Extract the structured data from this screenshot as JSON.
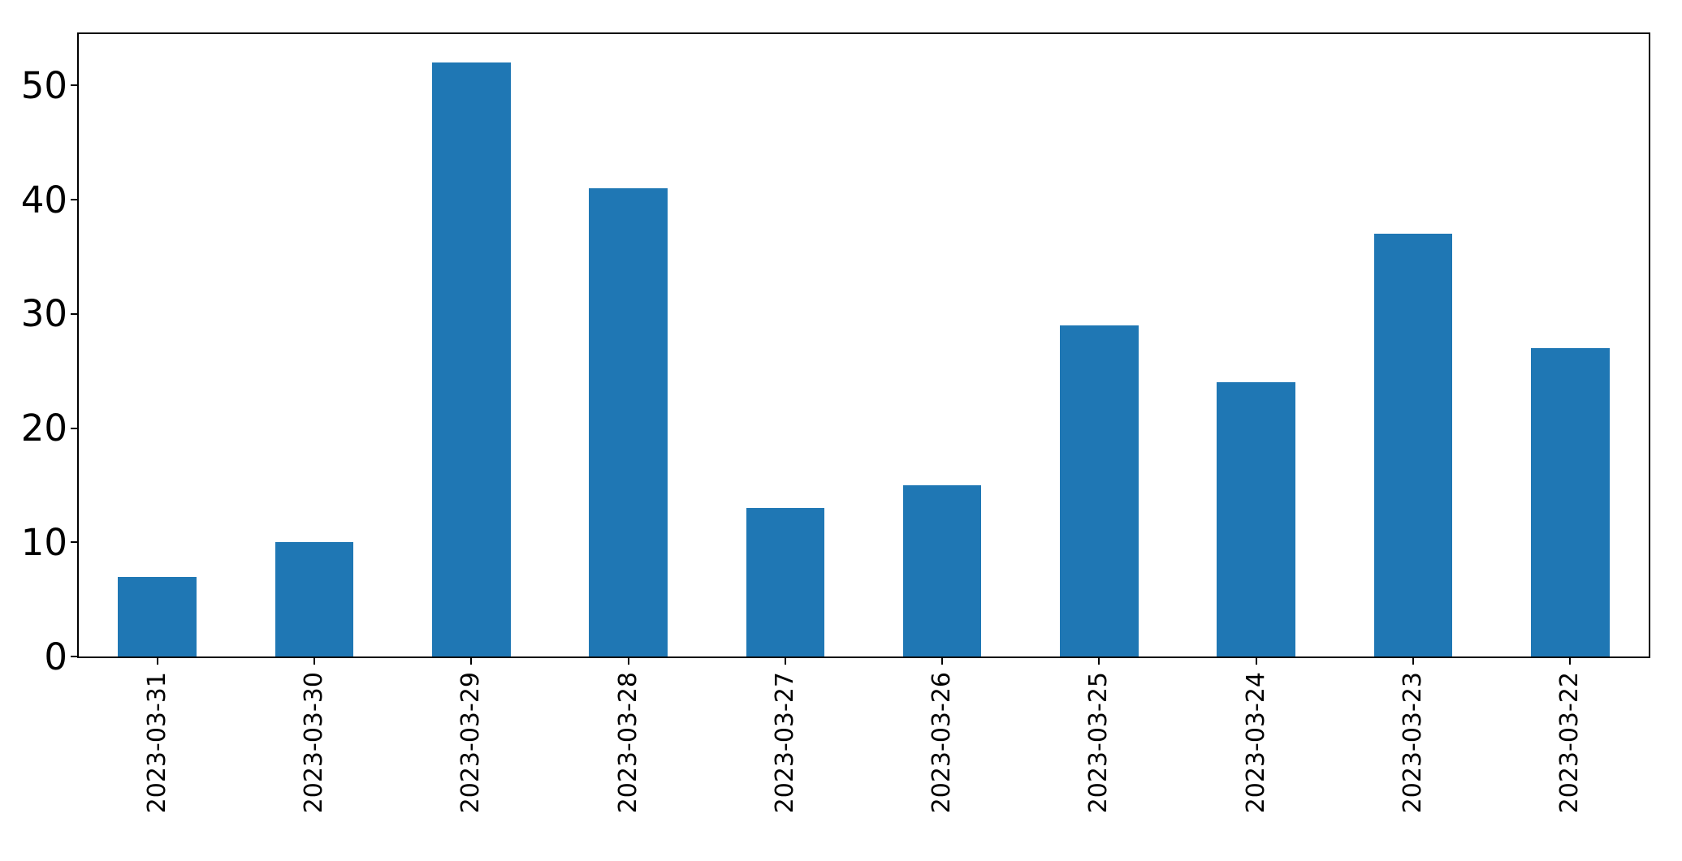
{
  "chart_data": {
    "type": "bar",
    "title": "",
    "xlabel": "",
    "ylabel": "",
    "categories": [
      "2023-03-31",
      "2023-03-30",
      "2023-03-29",
      "2023-03-28",
      "2023-03-27",
      "2023-03-26",
      "2023-03-25",
      "2023-03-24",
      "2023-03-23",
      "2023-03-22"
    ],
    "values": [
      7,
      10,
      52,
      41,
      13,
      15,
      29,
      24,
      37,
      27
    ],
    "yticks": [
      0,
      10,
      20,
      30,
      40,
      50
    ],
    "ylim": [
      0,
      54.5
    ],
    "x_tick_rotation": 90,
    "bar_width_fraction": 0.5,
    "grid": false,
    "legend_position": "none",
    "colors": {
      "bar": "#1f77b4",
      "spine": "#000000",
      "tick_label": "#000000",
      "background": "#ffffff"
    }
  }
}
